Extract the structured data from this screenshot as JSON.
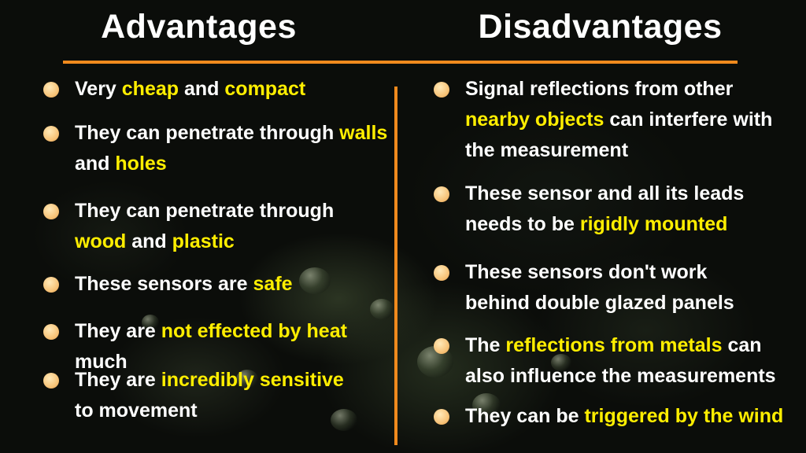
{
  "colors": {
    "accent_line": "#f08a1d",
    "highlight": "#ffee00",
    "bullet": "#f7c47a",
    "text": "#ffffff"
  },
  "advantages": {
    "heading": "Advantages",
    "items": [
      {
        "t1": "Very ",
        "h1": "cheap",
        "t2": " and ",
        "h2": "compact"
      },
      {
        "t1": "They can penetrate through ",
        "h1": "walls",
        "t2": " and ",
        "h2": "holes"
      },
      {
        "t1": "They can penetrate through ",
        "h1": "wood",
        "t2": " and ",
        "h2": "plastic"
      },
      {
        "t1": "These sensors are ",
        "h1": "safe"
      },
      {
        "t1": "They are ",
        "h1": "not effected by heat",
        "t2": " much"
      },
      {
        "t1": "They are ",
        "h1": "incredibly sensitive",
        "t2": " to movement"
      }
    ]
  },
  "disadvantages": {
    "heading": "Disadvantages",
    "items": [
      {
        "t1": "Signal reflections from other ",
        "h1": "nearby objects",
        "t2": " can interfere with the measurement"
      },
      {
        "t1": "These sensor and all its leads needs to be ",
        "h1": "rigidly mounted"
      },
      {
        "t1": "These sensors don't work behind double glazed panels"
      },
      {
        "t1": "The ",
        "h1": "reflections from metals",
        "t2": " can also influence the measurements"
      },
      {
        "t1": "They can be ",
        "h1": "triggered by the wind"
      }
    ]
  }
}
